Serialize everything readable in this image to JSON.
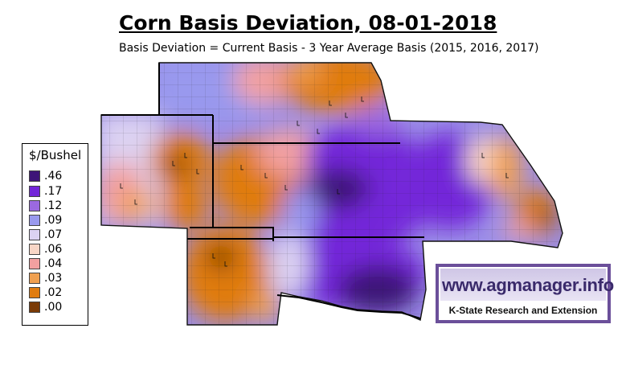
{
  "title": "Corn Basis Deviation, 08-01-2018",
  "subtitle": "Basis Deviation = Current Basis - 3 Year Average Basis (2015, 2016, 2017)",
  "legend": {
    "title": "$/Bushel",
    "items": [
      {
        "label": ".46",
        "color": "#3d1478"
      },
      {
        "label": ".17",
        "color": "#7326d9"
      },
      {
        "label": ".12",
        "color": "#9b69e0"
      },
      {
        "label": ".09",
        "color": "#9999ee"
      },
      {
        "label": ".07",
        "color": "#dcd2f2"
      },
      {
        "label": ".06",
        "color": "#f8d6c6"
      },
      {
        "label": ".04",
        "color": "#f2a0a0"
      },
      {
        "label": ".03",
        "color": "#f0a050"
      },
      {
        "label": ".02",
        "color": "#e07c10"
      },
      {
        "label": ".00",
        "color": "#7a3a06"
      }
    ]
  },
  "logo": {
    "url": "www.agmanager.info",
    "org": "K-State Research and Extension"
  }
}
